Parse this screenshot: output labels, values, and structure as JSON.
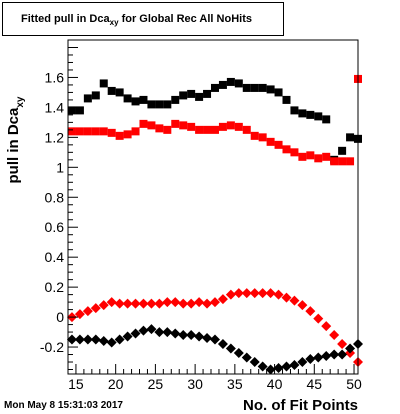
{
  "title": {
    "prefix": "Fitted pull in Dca",
    "subscript": "xy",
    "suffix": " for Global Rec All NoHits"
  },
  "timestamp": "Mon May  8 15:31:03 2017",
  "colors": {
    "black_series": "#000000",
    "red_series": "#ff0000",
    "frame": "#000000"
  },
  "chart_data": {
    "type": "scatter",
    "title": "Fitted pull in Dca_xy for Global Rec All NoHits",
    "xlabel": "No. of Fit Points",
    "ylabel": "pull in Dca_xy",
    "ylabel_main": "pull in Dca",
    "ylabel_sub": "xy",
    "xlim": [
      14,
      50.5
    ],
    "ylim": [
      -0.38,
      1.85
    ],
    "x_ticks": [
      15,
      20,
      25,
      30,
      35,
      40,
      45,
      50
    ],
    "y_ticks": [
      -0.2,
      0,
      0.2,
      0.4,
      0.6,
      0.8,
      1,
      1.2,
      1.4,
      1.6
    ],
    "y_tick_labels": [
      "-0.2",
      "0",
      "0.2",
      "0.4",
      "0.6",
      "0.8",
      "1",
      "1.2",
      "1.4",
      "1.6"
    ],
    "grid": false,
    "series": [
      {
        "marker": "square",
        "color": "black",
        "x": [
          14.5,
          15.5,
          16.5,
          17.5,
          18.5,
          19.5,
          20.5,
          21.5,
          22.5,
          23.5,
          24.5,
          25.5,
          26.5,
          27.5,
          28.5,
          29.5,
          30.5,
          31.5,
          32.5,
          33.5,
          34.5,
          35.5,
          36.5,
          37.5,
          38.5,
          39.5,
          40.5,
          41.5,
          42.5,
          43.5,
          44.5,
          45.5,
          46.5,
          47.5,
          48.5,
          49.5,
          50.5
        ],
        "y": [
          1.38,
          1.38,
          1.46,
          1.48,
          1.56,
          1.51,
          1.5,
          1.46,
          1.44,
          1.45,
          1.42,
          1.42,
          1.42,
          1.45,
          1.48,
          1.49,
          1.47,
          1.49,
          1.53,
          1.55,
          1.57,
          1.56,
          1.53,
          1.53,
          1.53,
          1.52,
          1.5,
          1.45,
          1.38,
          1.36,
          1.35,
          1.34,
          1.32,
          1.05,
          1.11,
          1.2,
          1.19
        ]
      },
      {
        "marker": "square",
        "color": "red",
        "x": [
          14.5,
          15.5,
          16.5,
          17.5,
          18.5,
          19.5,
          20.5,
          21.5,
          22.5,
          23.5,
          24.5,
          25.5,
          26.5,
          27.5,
          28.5,
          29.5,
          30.5,
          31.5,
          32.5,
          33.5,
          34.5,
          35.5,
          36.5,
          37.5,
          38.5,
          39.5,
          40.5,
          41.5,
          42.5,
          43.5,
          44.5,
          45.5,
          46.5,
          47.5,
          48.5,
          49.5,
          50.5
        ],
        "y": [
          1.24,
          1.24,
          1.24,
          1.24,
          1.24,
          1.23,
          1.21,
          1.22,
          1.24,
          1.29,
          1.28,
          1.26,
          1.25,
          1.29,
          1.28,
          1.27,
          1.25,
          1.25,
          1.25,
          1.27,
          1.28,
          1.27,
          1.25,
          1.21,
          1.2,
          1.17,
          1.15,
          1.12,
          1.1,
          1.07,
          1.08,
          1.06,
          1.07,
          1.04,
          1.04,
          1.04,
          1.59
        ]
      },
      {
        "marker": "diamond",
        "color": "red",
        "x": [
          14.5,
          15.5,
          16.5,
          17.5,
          18.5,
          19.5,
          20.5,
          21.5,
          22.5,
          23.5,
          24.5,
          25.5,
          26.5,
          27.5,
          28.5,
          29.5,
          30.5,
          31.5,
          32.5,
          33.5,
          34.5,
          35.5,
          36.5,
          37.5,
          38.5,
          39.5,
          40.5,
          41.5,
          42.5,
          43.5,
          44.5,
          45.5,
          46.5,
          47.5,
          48.5,
          49.5,
          50.5
        ],
        "y": [
          0.0,
          0.02,
          0.04,
          0.06,
          0.08,
          0.1,
          0.09,
          0.09,
          0.09,
          0.09,
          0.09,
          0.09,
          0.1,
          0.1,
          0.09,
          0.09,
          0.1,
          0.09,
          0.1,
          0.12,
          0.15,
          0.16,
          0.16,
          0.16,
          0.16,
          0.16,
          0.15,
          0.13,
          0.11,
          0.08,
          0.04,
          -0.01,
          -0.06,
          -0.12,
          -0.18,
          -0.24,
          -0.3
        ]
      },
      {
        "marker": "diamond",
        "color": "black",
        "x": [
          14.5,
          15.5,
          16.5,
          17.5,
          18.5,
          19.5,
          20.5,
          21.5,
          22.5,
          23.5,
          24.5,
          25.5,
          26.5,
          27.5,
          28.5,
          29.5,
          30.5,
          31.5,
          32.5,
          33.5,
          34.5,
          35.5,
          36.5,
          37.5,
          38.5,
          39.5,
          40.5,
          41.5,
          42.5,
          43.5,
          44.5,
          45.5,
          46.5,
          47.5,
          48.5,
          49.5,
          50.5
        ],
        "y": [
          -0.15,
          -0.15,
          -0.15,
          -0.15,
          -0.16,
          -0.17,
          -0.15,
          -0.13,
          -0.11,
          -0.09,
          -0.08,
          -0.1,
          -0.1,
          -0.11,
          -0.12,
          -0.12,
          -0.13,
          -0.14,
          -0.15,
          -0.18,
          -0.21,
          -0.24,
          -0.27,
          -0.3,
          -0.33,
          -0.35,
          -0.34,
          -0.33,
          -0.32,
          -0.3,
          -0.28,
          -0.27,
          -0.26,
          -0.25,
          -0.25,
          -0.21,
          -0.18
        ]
      }
    ]
  }
}
